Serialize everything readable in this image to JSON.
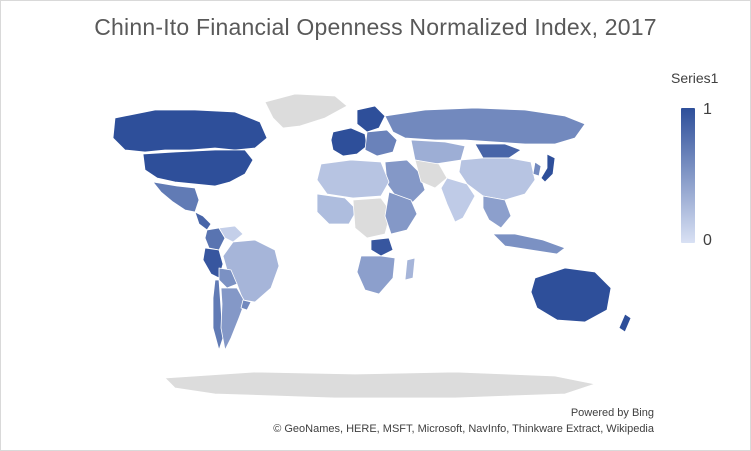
{
  "title": "Chinn-Ito Financial Openness Normalized Index, 2017",
  "legend": {
    "series_name": "Series1",
    "max_label": "1",
    "min_label": "0",
    "color_high": "#2e4f9a",
    "color_low": "#d9e1f4"
  },
  "colors": {
    "no_data": "#dcdcdc",
    "border": "#ffffff"
  },
  "attribution": {
    "powered_by": "Powered by Bing",
    "credits": "© GeoNames, HERE, MSFT, Microsoft, NavInfo, Thinkware Extract, Wikipedia"
  },
  "map_data": {
    "scale": [
      0,
      1
    ],
    "regions": [
      {
        "name": "Greenland",
        "value": null
      },
      {
        "name": "Canada",
        "value": 1
      },
      {
        "name": "United States",
        "value": 1
      },
      {
        "name": "Mexico",
        "value": 0.7
      },
      {
        "name": "Central America",
        "value": 0.85
      },
      {
        "name": "Colombia",
        "value": 0.75
      },
      {
        "name": "Venezuela",
        "value": 0.12
      },
      {
        "name": "Peru",
        "value": 0.95
      },
      {
        "name": "Brazil",
        "value": 0.3
      },
      {
        "name": "Bolivia",
        "value": 0.55
      },
      {
        "name": "Argentina",
        "value": 0.5
      },
      {
        "name": "Chile",
        "value": 0.7
      },
      {
        "name": "Uruguay",
        "value": 0.6
      },
      {
        "name": "Western Europe",
        "value": 1
      },
      {
        "name": "Scandinavia",
        "value": 1
      },
      {
        "name": "Eastern Europe",
        "value": 0.65
      },
      {
        "name": "Russia",
        "value": 0.6
      },
      {
        "name": "Kazakhstan",
        "value": 0.35
      },
      {
        "name": "Mongolia",
        "value": 0.85
      },
      {
        "name": "China",
        "value": 0.2
      },
      {
        "name": "Japan",
        "value": 1
      },
      {
        "name": "Korea",
        "value": 0.6
      },
      {
        "name": "Middle East",
        "value": 0.5
      },
      {
        "name": "Iran",
        "value": null
      },
      {
        "name": "India",
        "value": 0.15
      },
      {
        "name": "Southeast Asia",
        "value": 0.45
      },
      {
        "name": "Indonesia",
        "value": 0.55
      },
      {
        "name": "North Africa",
        "value": 0.2
      },
      {
        "name": "West Africa",
        "value": 0.25
      },
      {
        "name": "Central Africa",
        "value": null
      },
      {
        "name": "East Africa",
        "value": 0.5
      },
      {
        "name": "Southern Africa",
        "value": 0.45
      },
      {
        "name": "Zambia",
        "value": 0.95
      },
      {
        "name": "Madagascar",
        "value": 0.3
      },
      {
        "name": "Australia",
        "value": 1
      },
      {
        "name": "New Zealand",
        "value": 1
      },
      {
        "name": "Antarctica",
        "value": null
      }
    ]
  }
}
